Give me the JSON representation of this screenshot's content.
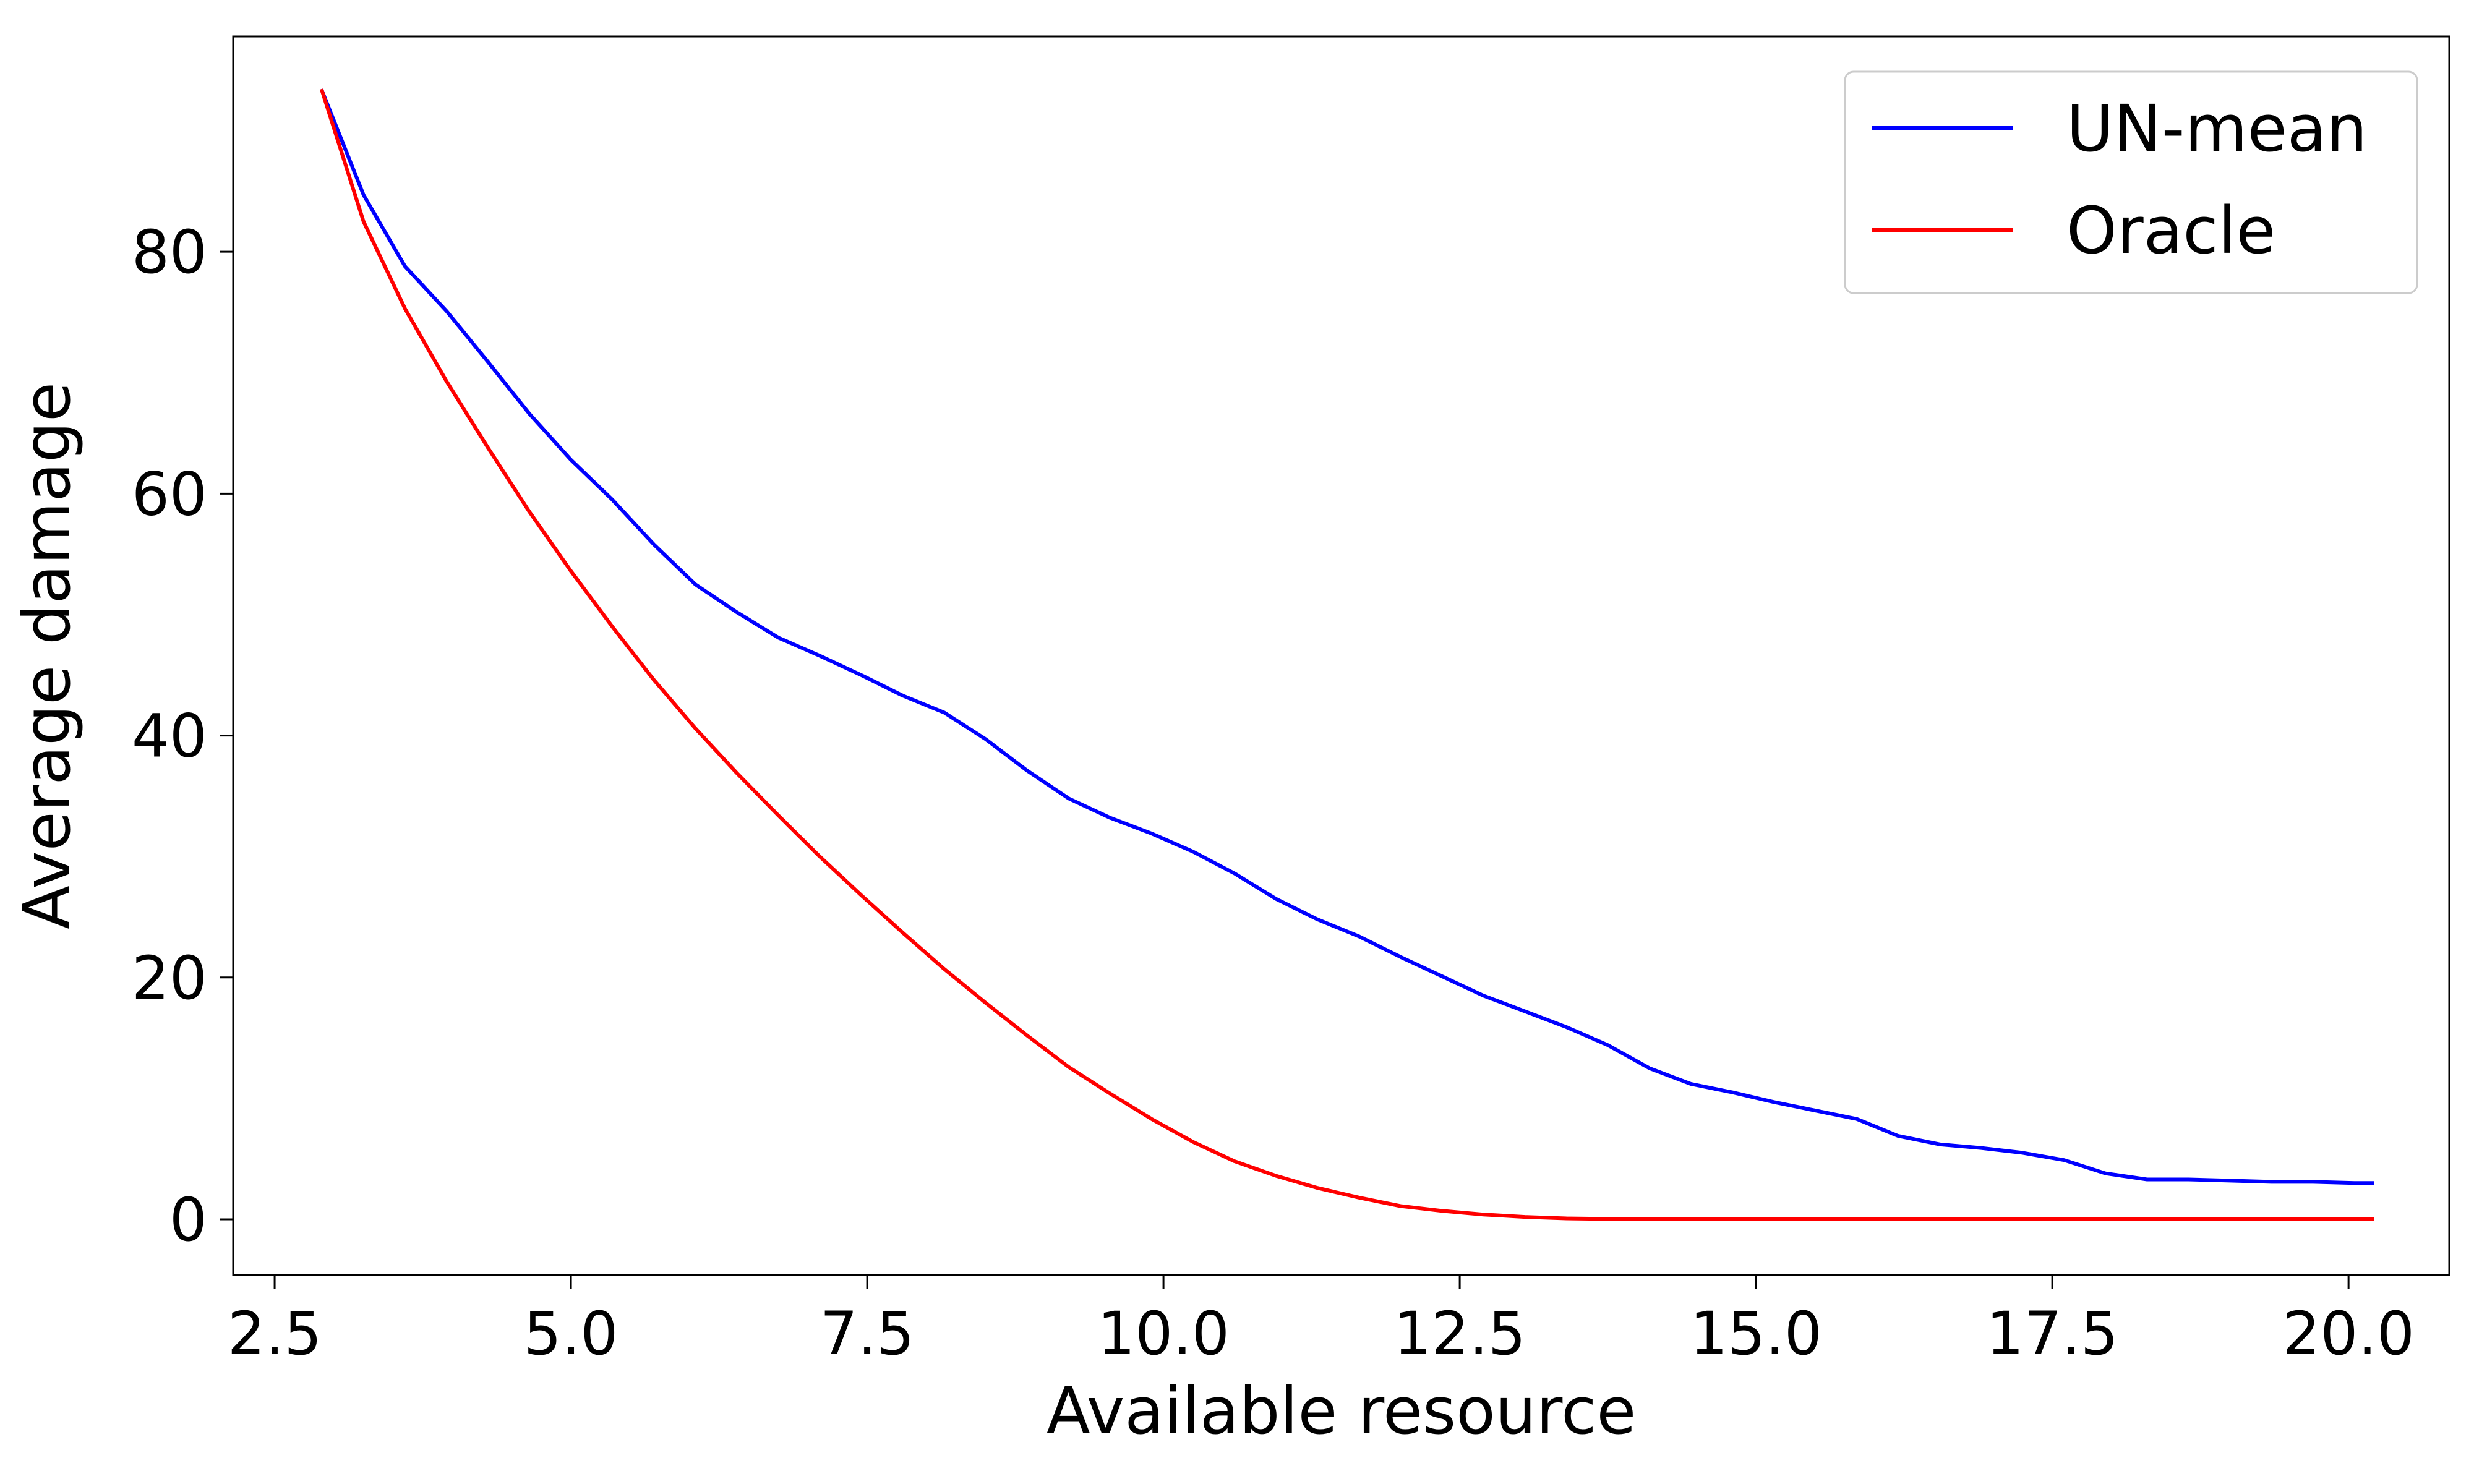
{
  "chart_data": {
    "type": "line",
    "title": "",
    "xlabel": "Available resource",
    "ylabel": "Average damage",
    "xlim": [
      2.15,
      20.85
    ],
    "ylim": [
      -4.6,
      97.8
    ],
    "xticks": [
      2.5,
      5.0,
      7.5,
      10.0,
      12.5,
      15.0,
      17.5,
      20.0
    ],
    "xtick_labels": [
      "2.5",
      "5.0",
      "7.5",
      "10.0",
      "12.5",
      "15.0",
      "17.5",
      "20.0"
    ],
    "yticks": [
      0,
      20,
      40,
      60,
      80
    ],
    "ytick_labels": [
      "0",
      "20",
      "40",
      "60",
      "80"
    ],
    "grid": false,
    "legend_position": "top-right",
    "series": [
      {
        "name": "UN-mean",
        "color": "#0000ff",
        "x": [
          2.9,
          3.25,
          3.6,
          3.95,
          4.3,
          4.65,
          5.0,
          5.35,
          5.7,
          6.05,
          6.4,
          6.75,
          7.1,
          7.45,
          7.8,
          8.15,
          8.5,
          8.85,
          9.2,
          9.55,
          9.9,
          10.25,
          10.6,
          10.95,
          11.3,
          11.65,
          12.0,
          12.35,
          12.7,
          13.05,
          13.4,
          13.75,
          14.1,
          14.45,
          14.8,
          15.15,
          15.5,
          15.85,
          16.2,
          16.55,
          16.9,
          17.25,
          17.6,
          17.95,
          18.3,
          18.65,
          19.0,
          19.35,
          19.7,
          20.05,
          20.2
        ],
        "y": [
          93.3,
          84.7,
          78.8,
          75.1,
          70.9,
          66.6,
          62.8,
          59.5,
          55.8,
          52.5,
          50.2,
          48.1,
          46.6,
          45.0,
          43.3,
          41.9,
          39.7,
          37.1,
          34.8,
          33.2,
          31.9,
          30.4,
          28.6,
          26.5,
          24.8,
          23.4,
          21.7,
          20.1,
          18.5,
          17.2,
          15.9,
          14.4,
          12.5,
          11.2,
          10.5,
          9.7,
          9.0,
          8.3,
          6.9,
          6.2,
          5.9,
          5.5,
          4.9,
          3.8,
          3.3,
          3.3,
          3.2,
          3.1,
          3.1,
          3.0,
          3.0
        ]
      },
      {
        "name": "Oracle",
        "color": "#ff0000",
        "x": [
          2.9,
          3.25,
          3.6,
          3.95,
          4.3,
          4.65,
          5.0,
          5.35,
          5.7,
          6.05,
          6.4,
          6.75,
          7.1,
          7.45,
          7.8,
          8.15,
          8.5,
          8.85,
          9.2,
          9.55,
          9.9,
          10.25,
          10.6,
          10.95,
          11.3,
          11.65,
          12.0,
          12.35,
          12.7,
          13.05,
          13.4,
          13.75,
          14.1,
          14.45,
          14.8,
          15.5,
          16.5,
          17.5,
          18.5,
          19.5,
          20.2
        ],
        "y": [
          93.3,
          82.5,
          75.3,
          69.3,
          63.8,
          58.5,
          53.6,
          49.0,
          44.6,
          40.6,
          36.9,
          33.4,
          30.0,
          26.8,
          23.7,
          20.7,
          17.9,
          15.2,
          12.6,
          10.4,
          8.3,
          6.4,
          4.8,
          3.6,
          2.6,
          1.8,
          1.1,
          0.7,
          0.4,
          0.2,
          0.08,
          0.03,
          0.0,
          0.0,
          0.0,
          0.0,
          0.0,
          0.0,
          0.0,
          0.0,
          0.0
        ]
      }
    ]
  }
}
